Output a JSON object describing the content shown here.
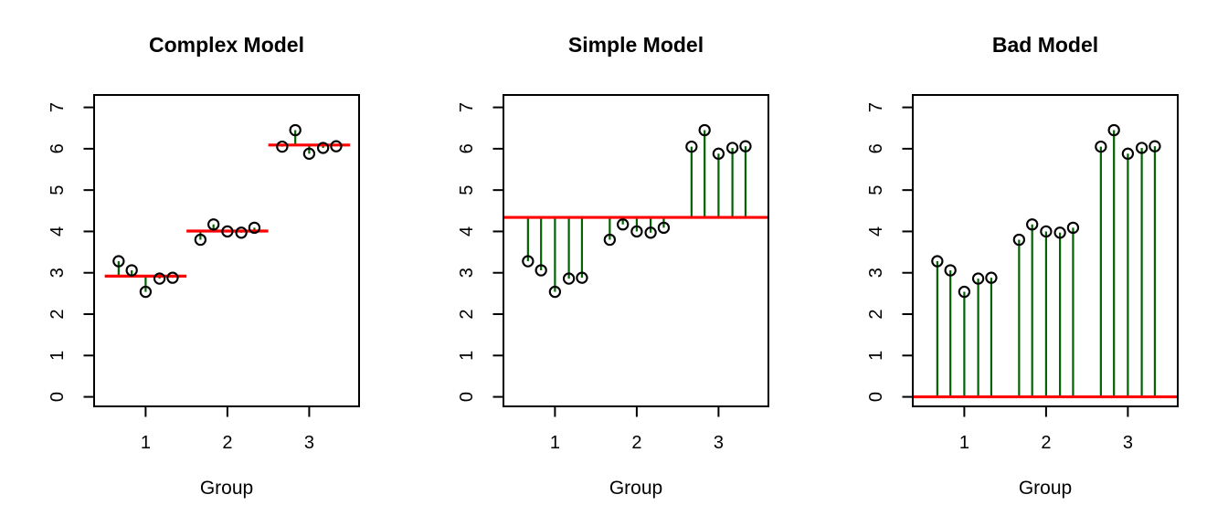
{
  "style": {
    "background": "#ffffff",
    "stem_color": "#006400",
    "mean_line_color": "#ff0000",
    "point_stroke": "#000000",
    "frame_color": "#000000",
    "text_color": "#000000"
  },
  "chart_data": [
    {
      "type": "scatter",
      "title": "Complex Model",
      "xlabel": "Group",
      "ylabel": "",
      "xlim": [
        0.37,
        3.61
      ],
      "ylim": [
        -0.23,
        7.3
      ],
      "x_ticks": [
        1,
        2,
        3
      ],
      "y_ticks": [
        0,
        1,
        2,
        3,
        4,
        5,
        6,
        7
      ],
      "grid": false,
      "legend": "none",
      "x": [
        0.67,
        0.83,
        1.0,
        1.17,
        1.33,
        1.67,
        1.83,
        2.0,
        2.17,
        2.33,
        2.67,
        2.83,
        3.0,
        3.17,
        3.33
      ],
      "y": [
        3.28,
        3.06,
        2.54,
        2.86,
        2.88,
        3.8,
        4.17,
        4.0,
        3.97,
        4.09,
        6.05,
        6.45,
        5.88,
        6.02,
        6.06
      ],
      "fitted": [
        2.92,
        2.92,
        2.92,
        2.92,
        2.92,
        4.01,
        4.01,
        4.01,
        4.01,
        4.01,
        6.09,
        6.09,
        6.09,
        6.09,
        6.09
      ],
      "mean_lines": [
        {
          "x0": 0.5,
          "x1": 1.5,
          "y": 2.92
        },
        {
          "x0": 1.5,
          "x1": 2.5,
          "y": 4.01
        },
        {
          "x0": 2.5,
          "x1": 3.5,
          "y": 6.09
        }
      ]
    },
    {
      "type": "scatter",
      "title": "Simple Model",
      "xlabel": "Group",
      "ylabel": "",
      "xlim": [
        0.37,
        3.61
      ],
      "ylim": [
        -0.23,
        7.3
      ],
      "x_ticks": [
        1,
        2,
        3
      ],
      "y_ticks": [
        0,
        1,
        2,
        3,
        4,
        5,
        6,
        7
      ],
      "grid": false,
      "legend": "none",
      "x": [
        0.67,
        0.83,
        1.0,
        1.17,
        1.33,
        1.67,
        1.83,
        2.0,
        2.17,
        2.33,
        2.67,
        2.83,
        3.0,
        3.17,
        3.33
      ],
      "y": [
        3.28,
        3.06,
        2.54,
        2.86,
        2.88,
        3.8,
        4.17,
        4.0,
        3.97,
        4.09,
        6.05,
        6.45,
        5.88,
        6.02,
        6.06
      ],
      "fitted": [
        4.34,
        4.34,
        4.34,
        4.34,
        4.34,
        4.34,
        4.34,
        4.34,
        4.34,
        4.34,
        4.34,
        4.34,
        4.34,
        4.34,
        4.34
      ],
      "mean_lines": [
        {
          "x0": 0.37,
          "x1": 3.61,
          "y": 4.34
        }
      ]
    },
    {
      "type": "scatter",
      "title": "Bad Model",
      "xlabel": "Group",
      "ylabel": "",
      "xlim": [
        0.37,
        3.61
      ],
      "ylim": [
        -0.23,
        7.3
      ],
      "x_ticks": [
        1,
        2,
        3
      ],
      "y_ticks": [
        0,
        1,
        2,
        3,
        4,
        5,
        6,
        7
      ],
      "grid": false,
      "legend": "none",
      "x": [
        0.67,
        0.83,
        1.0,
        1.17,
        1.33,
        1.67,
        1.83,
        2.0,
        2.17,
        2.33,
        2.67,
        2.83,
        3.0,
        3.17,
        3.33
      ],
      "y": [
        3.28,
        3.06,
        2.54,
        2.86,
        2.88,
        3.8,
        4.17,
        4.0,
        3.97,
        4.09,
        6.05,
        6.45,
        5.88,
        6.02,
        6.06
      ],
      "fitted": [
        0,
        0,
        0,
        0,
        0,
        0,
        0,
        0,
        0,
        0,
        0,
        0,
        0,
        0,
        0
      ],
      "mean_lines": [
        {
          "x0": 0.37,
          "x1": 3.61,
          "y": 0
        }
      ]
    }
  ]
}
